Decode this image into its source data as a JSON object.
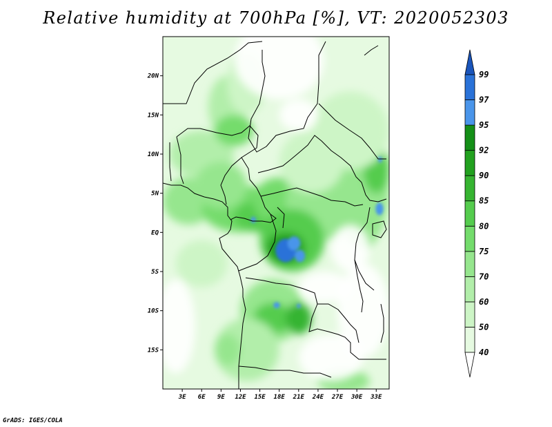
{
  "title": "Relative humidity at 700hPa [%], VT: 2020052303",
  "credit": "GrADS: IGES/COLA",
  "map": {
    "lon_range": [
      0,
      35
    ],
    "lat_range": [
      -20,
      25
    ],
    "lat_ticks": [
      {
        "value": 20,
        "label": "20N"
      },
      {
        "value": 15,
        "label": "15N"
      },
      {
        "value": 10,
        "label": "10N"
      },
      {
        "value": 5,
        "label": "5N"
      },
      {
        "value": 0,
        "label": "EQ"
      },
      {
        "value": -5,
        "label": "5S"
      },
      {
        "value": -10,
        "label": "10S"
      },
      {
        "value": -15,
        "label": "15S"
      }
    ],
    "lon_ticks": [
      {
        "value": 3,
        "label": "3E"
      },
      {
        "value": 6,
        "label": "6E"
      },
      {
        "value": 9,
        "label": "9E"
      },
      {
        "value": 12,
        "label": "12E"
      },
      {
        "value": 15,
        "label": "15E"
      },
      {
        "value": 18,
        "label": "18E"
      },
      {
        "value": 21,
        "label": "21E"
      },
      {
        "value": 24,
        "label": "24E"
      },
      {
        "value": 27,
        "label": "27E"
      },
      {
        "value": 30,
        "label": "30E"
      },
      {
        "value": 33,
        "label": "33E"
      }
    ]
  },
  "colorbar": {
    "levels": [
      {
        "label": "40",
        "color": "#ffffff"
      },
      {
        "label": "50",
        "color": "#e6fae1"
      },
      {
        "label": "60",
        "color": "#cdf5c6"
      },
      {
        "label": "70",
        "color": "#b2eeaa"
      },
      {
        "label": "75",
        "color": "#96e68e"
      },
      {
        "label": "80",
        "color": "#74dc6c"
      },
      {
        "label": "85",
        "color": "#55cc4e"
      },
      {
        "label": "90",
        "color": "#36b431"
      },
      {
        "label": "92",
        "color": "#22a11f"
      },
      {
        "label": "95",
        "color": "#148f17"
      },
      {
        "label": "97",
        "color": "#4a95ea"
      },
      {
        "label": "99",
        "color": "#2a72d8"
      }
    ],
    "top_color": "#1a55bb"
  },
  "fields": {
    "humid_blobs": [
      {
        "lon": 6,
        "lat": 10,
        "rx": 5,
        "ry": 3,
        "level": 3
      },
      {
        "lon": 10,
        "lat": 16,
        "rx": 3,
        "ry": 4,
        "level": 3
      },
      {
        "lon": 11,
        "lat": 13,
        "rx": 3,
        "ry": 2,
        "level": 5
      },
      {
        "lon": 4,
        "lat": 4,
        "rx": 4,
        "ry": 3,
        "level": 4
      },
      {
        "lon": 12,
        "lat": 3,
        "rx": 6,
        "ry": 3,
        "level": 5
      },
      {
        "lon": 15,
        "lat": 2,
        "rx": 4,
        "ry": 2,
        "level": 6
      },
      {
        "lon": 18,
        "lat": 4,
        "rx": 4,
        "ry": 3,
        "level": 5
      },
      {
        "lon": 25,
        "lat": 4,
        "rx": 6,
        "ry": 5,
        "level": 4
      },
      {
        "lon": 31,
        "lat": 6,
        "rx": 4,
        "ry": 8,
        "level": 4
      },
      {
        "lon": 33,
        "lat": 8,
        "rx": 2,
        "ry": 3,
        "level": 6
      },
      {
        "lon": 20,
        "lat": -1,
        "rx": 5,
        "ry": 4,
        "level": 6
      },
      {
        "lon": 19,
        "lat": -2,
        "rx": 3,
        "ry": 2,
        "level": 8
      },
      {
        "lon": 17,
        "lat": -10,
        "rx": 5,
        "ry": 4,
        "level": 4
      },
      {
        "lon": 17,
        "lat": -11,
        "rx": 3,
        "ry": 2,
        "level": 6
      },
      {
        "lon": 21,
        "lat": -11,
        "rx": 2,
        "ry": 2,
        "level": 7
      },
      {
        "lon": 13,
        "lat": -15,
        "rx": 5,
        "ry": 4,
        "level": 3
      },
      {
        "lon": 10,
        "lat": -15,
        "rx": 2,
        "ry": 2,
        "level": 4
      },
      {
        "lon": 28,
        "lat": -19,
        "rx": 4,
        "ry": 1.5,
        "level": 4
      },
      {
        "lon": 9,
        "lat": 6,
        "rx": 4,
        "ry": 3,
        "level": 4
      },
      {
        "lon": 29,
        "lat": 13,
        "rx": 6,
        "ry": 5,
        "level": 2
      },
      {
        "lon": 6,
        "lat": -4,
        "rx": 4,
        "ry": 3,
        "level": 2
      },
      {
        "lon": 23,
        "lat": 9,
        "rx": 5,
        "ry": 4,
        "level": 2
      },
      {
        "lon": 13,
        "lat": 19,
        "rx": 3,
        "ry": 4,
        "level": 2
      }
    ],
    "saturated_patches": [
      {
        "lon": 19,
        "lat": -2.3,
        "rx": 1.6,
        "ry": 1.5,
        "level": 11
      },
      {
        "lon": 20.3,
        "lat": -1.4,
        "rx": 1.0,
        "ry": 0.9,
        "level": 10
      },
      {
        "lon": 21.2,
        "lat": -3.0,
        "rx": 0.8,
        "ry": 0.8,
        "level": 10
      },
      {
        "lon": 14,
        "lat": 1.6,
        "rx": 0.4,
        "ry": 0.4,
        "level": 10
      },
      {
        "lon": 33.5,
        "lat": 3.0,
        "rx": 0.6,
        "ry": 0.8,
        "level": 10
      },
      {
        "lon": 33.6,
        "lat": 9.3,
        "rx": 0.3,
        "ry": 0.4,
        "level": 10
      },
      {
        "lon": 17.6,
        "lat": -9.3,
        "rx": 0.5,
        "ry": 0.4,
        "level": 10
      },
      {
        "lon": 21.0,
        "lat": -9.4,
        "rx": 0.3,
        "ry": 0.3,
        "level": 10
      }
    ],
    "dry_zones": [
      {
        "lon": 18,
        "lat": 22,
        "rx": 7,
        "ry": 5
      },
      {
        "lon": 21,
        "lat": 15,
        "rx": 3,
        "ry": 2
      },
      {
        "lon": 25,
        "lat": -7,
        "rx": 4,
        "ry": 2
      },
      {
        "lon": 31,
        "lat": -10,
        "rx": 4,
        "ry": 6
      },
      {
        "lon": 26,
        "lat": -16,
        "rx": 5,
        "ry": 3
      },
      {
        "lon": 2,
        "lat": -12,
        "rx": 3,
        "ry": 6
      },
      {
        "lon": 29,
        "lat": -2,
        "rx": 3,
        "ry": 3
      }
    ]
  }
}
